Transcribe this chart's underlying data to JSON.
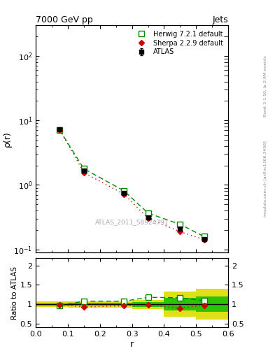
{
  "title": "7000 GeV pp",
  "title_right": "Jets",
  "ylabel_main": "ρ(r)",
  "ylabel_ratio": "Ratio to ATLAS",
  "xlabel": "r",
  "annotation": "ATLAS_2011_S8924791",
  "right_label": "mcplots.cern.ch [arXiv:1306.3436]",
  "right_label2": "Rivet 3.1.10, ≥ 2.9M events",
  "r_values": [
    0.075,
    0.15,
    0.275,
    0.35,
    0.45,
    0.525
  ],
  "atlas_y": [
    7.2,
    1.65,
    0.75,
    0.31,
    0.21,
    0.145
  ],
  "atlas_yerr": [
    0.08,
    0.04,
    0.025,
    0.012,
    0.008,
    0.006
  ],
  "herwig_y": [
    7.0,
    1.78,
    0.81,
    0.365,
    0.245,
    0.158
  ],
  "sherpa_y": [
    7.15,
    1.55,
    0.72,
    0.305,
    0.188,
    0.142
  ],
  "herwig_ratio": [
    0.97,
    1.08,
    1.08,
    1.18,
    1.17,
    1.09
  ],
  "sherpa_ratio": [
    0.99,
    0.93,
    0.96,
    0.98,
    0.9,
    0.975
  ],
  "band_x_edges": [
    0.0,
    0.1,
    0.2,
    0.3,
    0.4,
    0.5,
    0.6
  ],
  "band_yellow_lo": [
    0.93,
    0.92,
    0.92,
    0.88,
    0.68,
    0.6
  ],
  "band_yellow_hi": [
    1.07,
    1.08,
    1.08,
    1.12,
    1.32,
    1.4
  ],
  "band_green_lo": [
    0.97,
    0.96,
    0.96,
    0.94,
    0.84,
    0.8
  ],
  "band_green_hi": [
    1.03,
    1.04,
    1.04,
    1.06,
    1.16,
    1.2
  ],
  "atlas_color": "#000000",
  "herwig_color": "#008800",
  "sherpa_color": "#cc0000",
  "yellow_color": "#dddd00",
  "green_color": "#00bb00",
  "xlim": [
    0.0,
    0.6
  ],
  "ylim_main": [
    0.09,
    300
  ],
  "ylim_ratio": [
    0.4,
    2.2
  ],
  "yticks_ratio": [
    0.5,
    1.0,
    1.5,
    2.0
  ],
  "ytick_ratio_labels": [
    "0.5",
    "1",
    "1.5",
    "2"
  ]
}
